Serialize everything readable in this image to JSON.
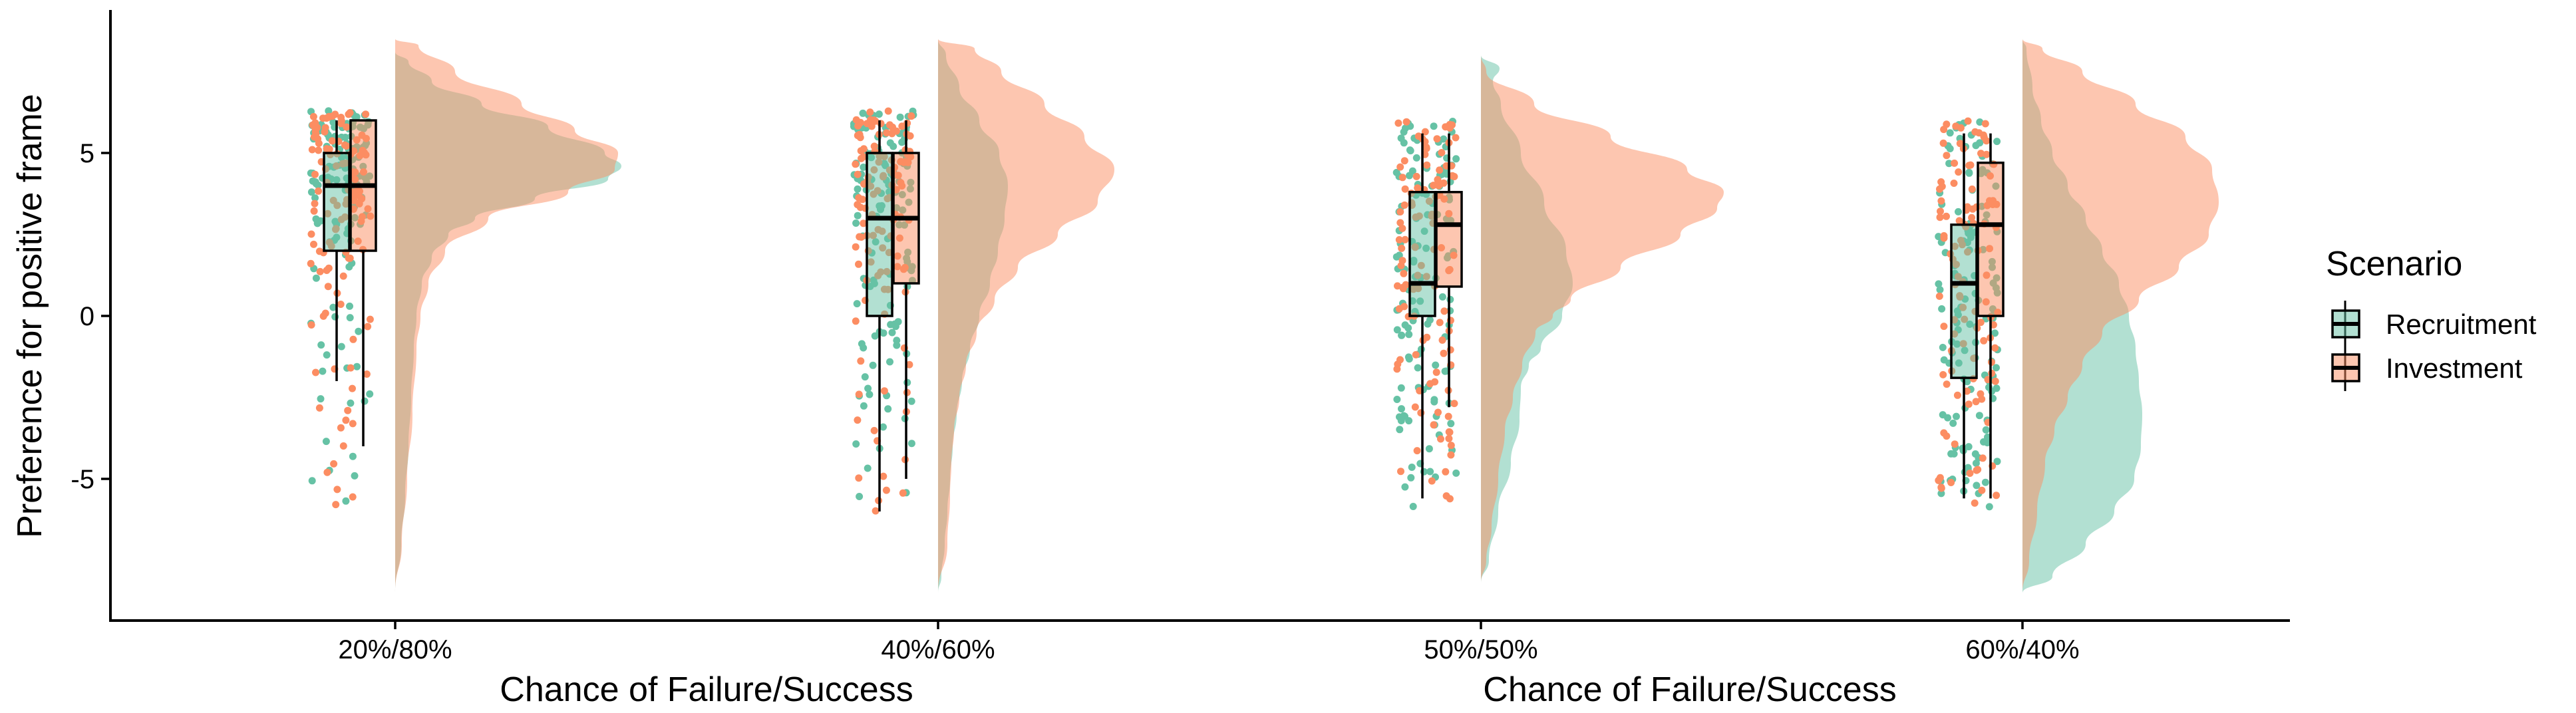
{
  "chart_data": {
    "type": "raincloud",
    "ylabel": "Preference for positive frame",
    "xlabel": "Chance of Failure/Success",
    "categories": [
      "20%/80%",
      "40%/60%",
      "50%/50%",
      "60%/40%"
    ],
    "y_ticks": [
      5,
      0,
      -5
    ],
    "y_tick_labels": [
      "5",
      "0",
      "-5"
    ],
    "ylim": [
      -9.3,
      9.3
    ],
    "grid": false,
    "legend": {
      "title": "Scenario",
      "position": "right",
      "entries": [
        "Recruitment",
        "Investment"
      ]
    },
    "colors": {
      "Recruitment": "#66c2a5",
      "Investment": "#fc8d62",
      "overlap": "#d4b396"
    },
    "series": [
      {
        "name": "Recruitment",
        "boxplots": [
          {
            "category": "20%/80%",
            "whisker_low": -2,
            "q1": 2,
            "median": 4,
            "q3": 5,
            "whisker_high": 6
          },
          {
            "category": "40%/60%",
            "whisker_low": -6,
            "q1": 0,
            "median": 3,
            "q3": 5,
            "whisker_high": 6
          },
          {
            "category": "50%/50%",
            "whisker_low": -5.6,
            "q1": 0,
            "median": 1,
            "q3": 3.8,
            "whisker_high": 5.6
          },
          {
            "category": "60%/40%",
            "whisker_low": -5.6,
            "q1": -1.9,
            "median": 1,
            "q3": 2.8,
            "whisker_high": 5.6
          }
        ],
        "density_mode": [
          4.6,
          4.0,
          1.0,
          0.0
        ]
      },
      {
        "name": "Investment",
        "boxplots": [
          {
            "category": "20%/80%",
            "whisker_low": -4,
            "q1": 2,
            "median": 4,
            "q3": 6,
            "whisker_high": 6
          },
          {
            "category": "40%/60%",
            "whisker_low": -5,
            "q1": 1,
            "median": 3,
            "q3": 5,
            "whisker_high": 6
          },
          {
            "category": "50%/50%",
            "whisker_low": -2.8,
            "q1": 0.9,
            "median": 2.8,
            "q3": 3.8,
            "whisker_high": 5.6
          },
          {
            "category": "60%/40%",
            "whisker_low": -5.6,
            "q1": 0,
            "median": 2.8,
            "q3": 4.7,
            "whisker_high": 5.6
          }
        ],
        "density_mode": [
          4.5,
          4.5,
          3.5,
          3.5
        ]
      }
    ]
  }
}
